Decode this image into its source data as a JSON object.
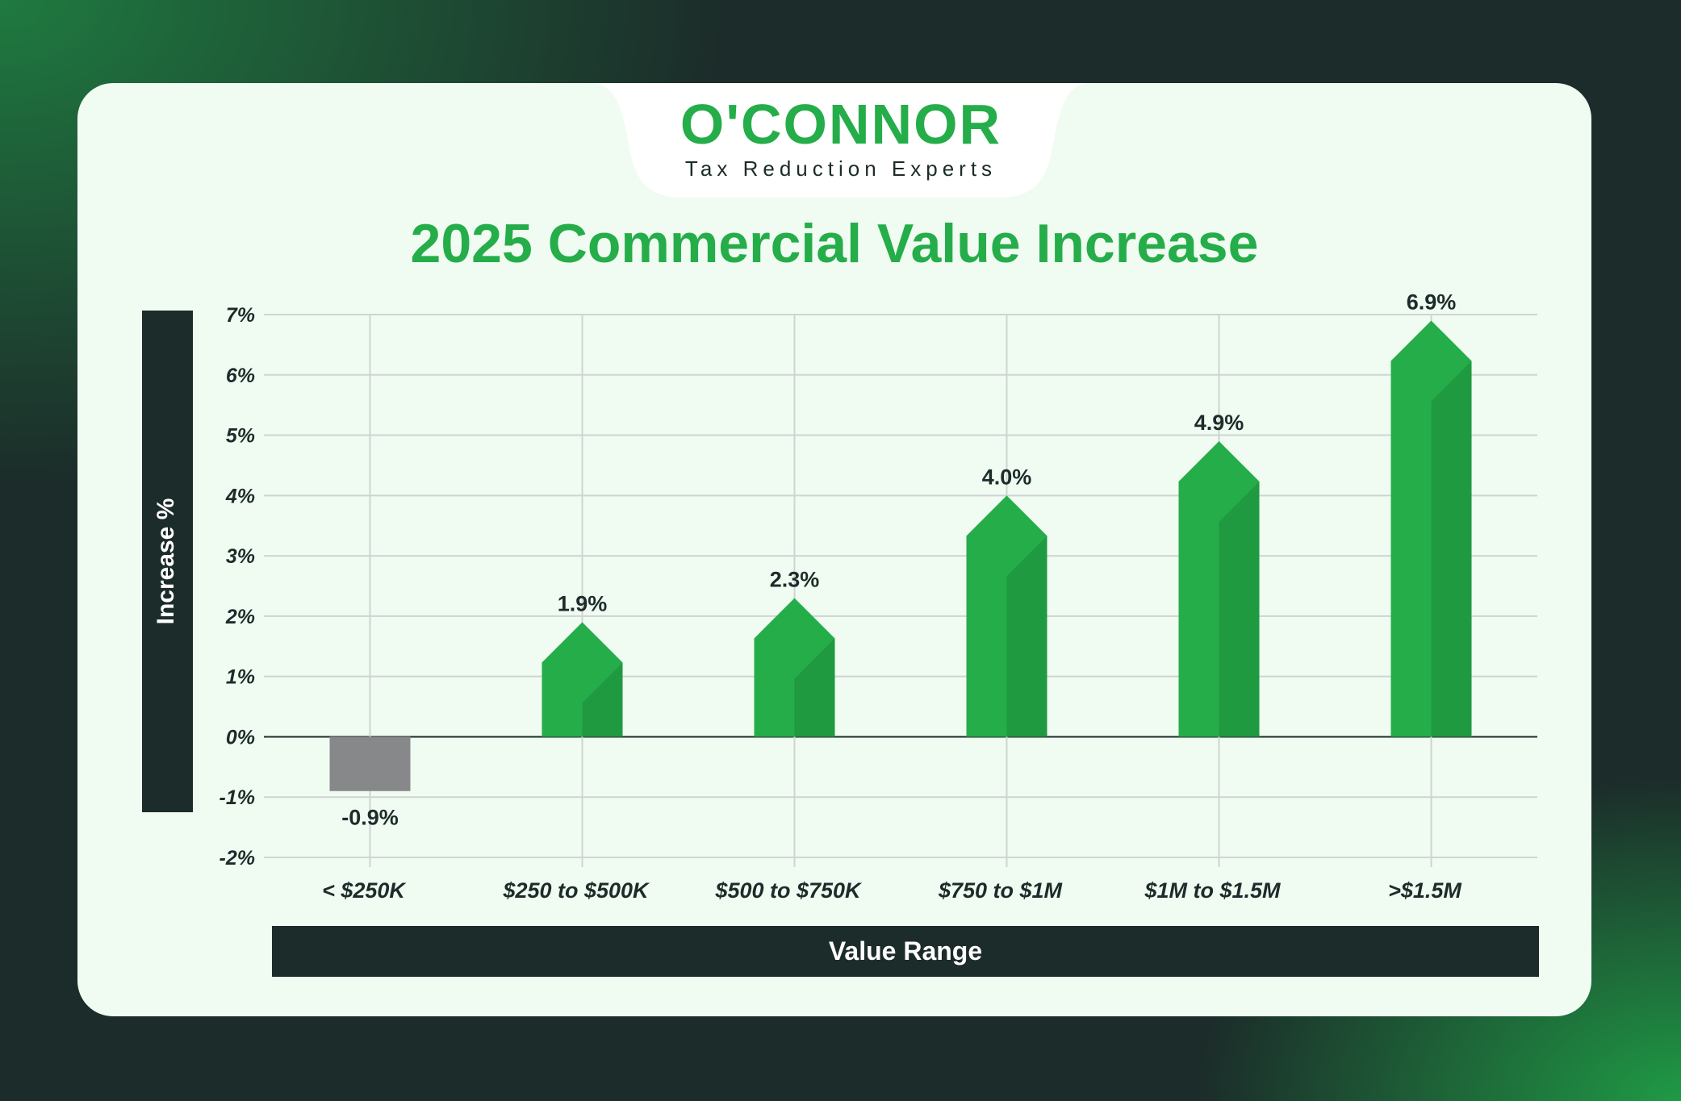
{
  "brand": {
    "logo": "O'CONNOR",
    "tagline": "Tax Reduction Experts"
  },
  "colors": {
    "positive": "#25ad49",
    "positive_dark": "#1f9a41",
    "negative": "#87888a",
    "dark": "#1c2c2a"
  },
  "chart_data": {
    "type": "bar",
    "title": "2025 Commercial Value Increase",
    "xlabel": "Value Range",
    "ylabel": "Increase %",
    "categories": [
      "< $250K",
      "$250 to $500K",
      "$500 to $750K",
      "$750 to $1M",
      "$1M to $1.5M",
      ">$1.5M"
    ],
    "values": [
      -0.9,
      1.9,
      2.3,
      4.0,
      4.9,
      6.9
    ],
    "value_labels": [
      "-0.9%",
      "1.9%",
      "2.3%",
      "4.0%",
      "4.9%",
      "6.9%"
    ],
    "ylim": [
      -2,
      7
    ],
    "yticks": [
      7,
      6,
      5,
      4,
      3,
      2,
      1,
      0,
      -1,
      -2
    ],
    "ytick_labels": [
      "7%",
      "6%",
      "5%",
      "4%",
      "3%",
      "2%",
      "1%",
      "0%",
      "-1%",
      "-2%"
    ],
    "grid": true,
    "legend": "none"
  }
}
